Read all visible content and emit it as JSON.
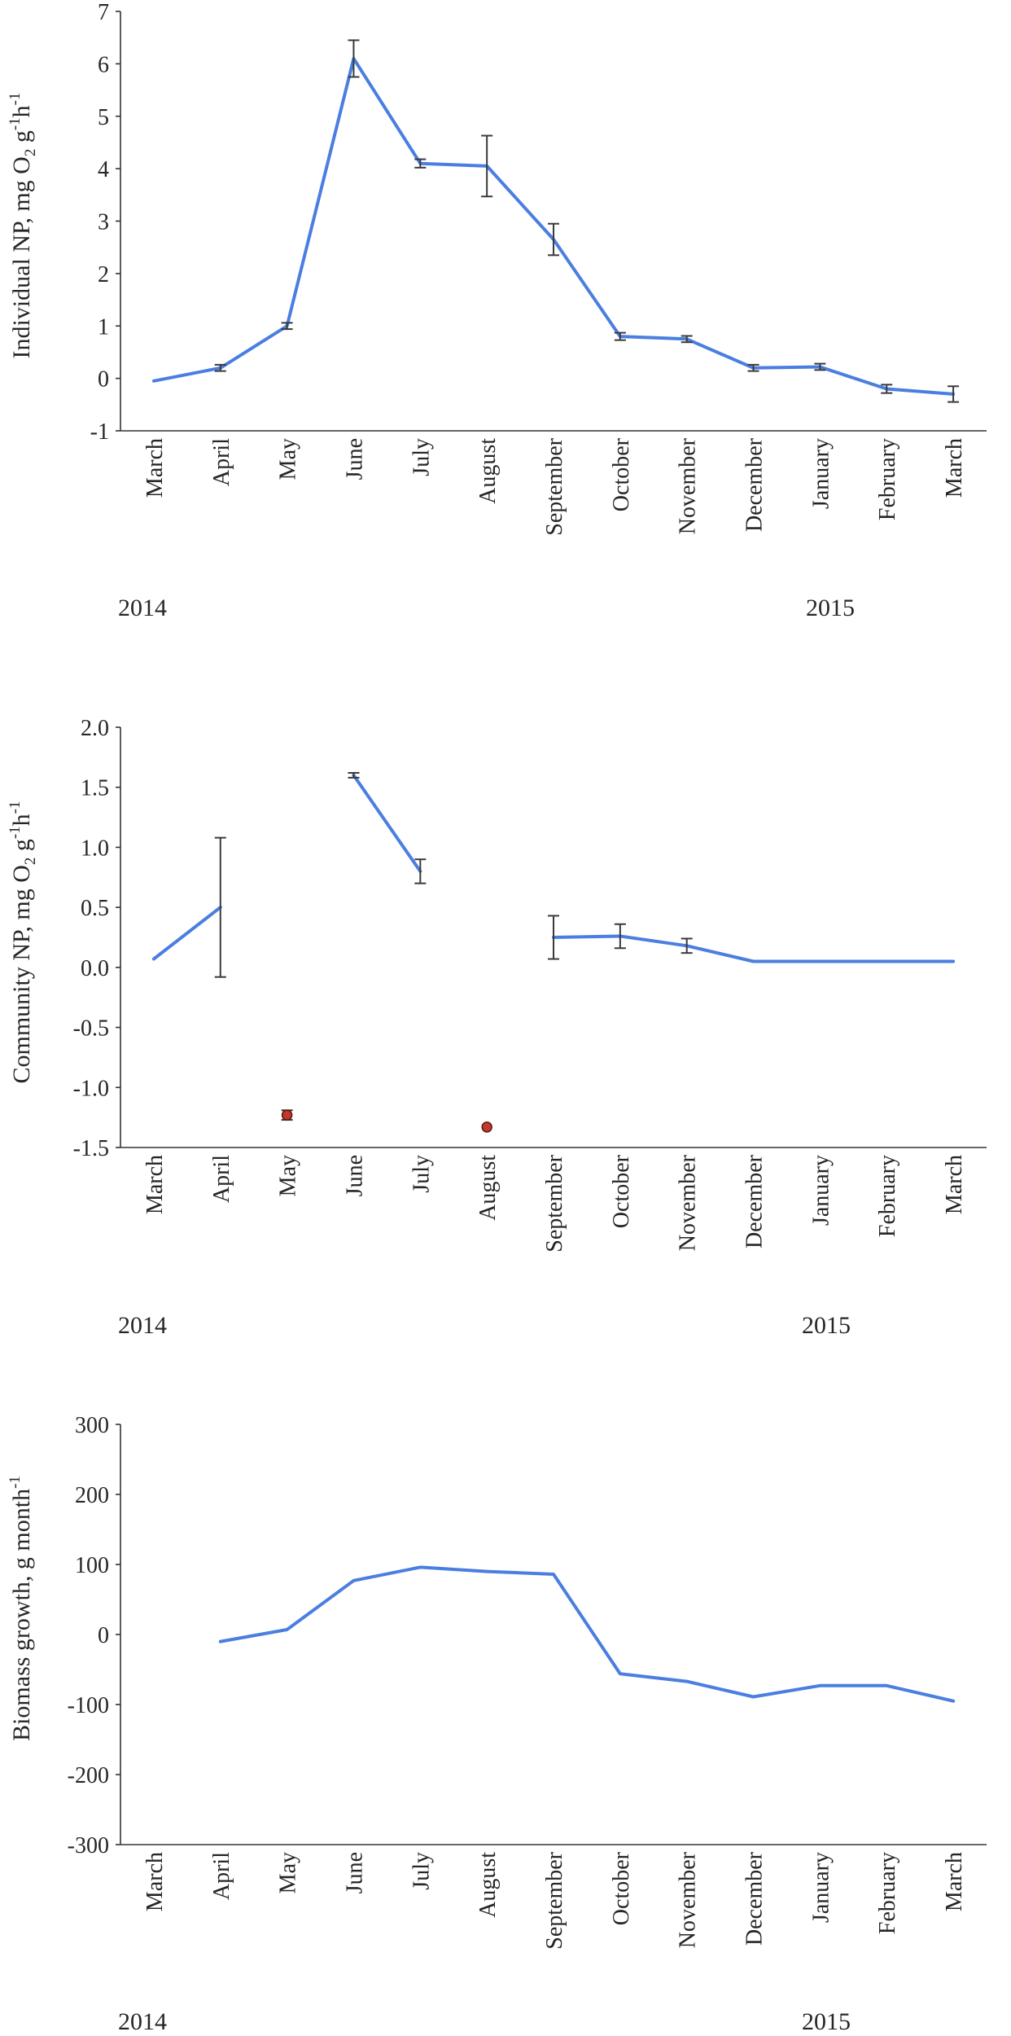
{
  "colors": {
    "line": "#4a7ee0",
    "marker": "#c0392b",
    "axis": "#333333"
  },
  "chart_data": [
    {
      "type": "line",
      "ylabel_main": "Individual NP, mg O",
      "ylabel_sub": "2",
      "ylabel_rest": " g",
      "ylabel_sup1": "-1",
      "ylabel_h": "h",
      "ylabel_sup2": "-1",
      "ylim": [
        -1,
        7
      ],
      "yticks": [
        "-1",
        "0",
        "1",
        "2",
        "3",
        "4",
        "5",
        "6",
        "7"
      ],
      "categories": [
        "March",
        "April",
        "May",
        "June",
        "July",
        "August",
        "September",
        "October",
        "November",
        "December",
        "January",
        "February",
        "March"
      ],
      "years": [
        "2014",
        "2015"
      ],
      "series": [
        {
          "name": "Individual NP",
          "values": [
            -0.05,
            0.2,
            1.0,
            6.1,
            4.1,
            4.05,
            2.65,
            0.8,
            0.75,
            0.2,
            0.22,
            -0.2,
            -0.3
          ],
          "errors": [
            0,
            0.06,
            0.06,
            0.35,
            0.08,
            0.58,
            0.3,
            0.07,
            0.06,
            0.06,
            0.06,
            0.08,
            0.15
          ]
        }
      ],
      "markers": []
    },
    {
      "type": "line",
      "ylabel_main": "Community NP, mg O",
      "ylabel_sub": "2",
      "ylabel_rest": " g",
      "ylabel_sup1": "-1",
      "ylabel_h": "h",
      "ylabel_sup2": "-1",
      "ylim": [
        -1.5,
        2.0
      ],
      "yticks": [
        "-1.5",
        "-1.0",
        "-0.5",
        "0.0",
        "0.5",
        "1.0",
        "1.5",
        "2.0"
      ],
      "categories": [
        "March",
        "April",
        "May",
        "June",
        "July",
        "August",
        "September",
        "October",
        "November",
        "December",
        "January",
        "February",
        "March"
      ],
      "years": [
        "2014",
        "2015"
      ],
      "series": [
        {
          "name": "Community NP",
          "values": [
            0.07,
            0.5,
            null,
            1.6,
            0.8,
            null,
            0.25,
            0.26,
            0.18,
            0.05,
            0.05,
            0.05,
            0.05
          ],
          "errors": [
            0,
            0.58,
            0,
            0.02,
            0.1,
            0,
            0.18,
            0.1,
            0.06,
            0,
            0,
            0,
            0
          ]
        }
      ],
      "markers": [
        {
          "category": "May",
          "value": -1.23,
          "error": 0.04
        },
        {
          "category": "August",
          "value": -1.33,
          "error": 0
        }
      ]
    },
    {
      "type": "line",
      "ylabel_main": "Biomass growth, g month",
      "ylabel_sub": "",
      "ylabel_rest": "",
      "ylabel_sup1": "-1",
      "ylabel_h": "",
      "ylabel_sup2": "",
      "ylim": [
        -300,
        300
      ],
      "yticks": [
        "-300",
        "-200",
        "-100",
        "0",
        "100",
        "200",
        "300"
      ],
      "categories": [
        "March",
        "April",
        "May",
        "June",
        "July",
        "August",
        "September",
        "October",
        "November",
        "December",
        "January",
        "February",
        "March"
      ],
      "years": [
        "2014",
        "2015"
      ],
      "series": [
        {
          "name": "Biomass growth",
          "values": [
            null,
            -10,
            7,
            77,
            96,
            90,
            86,
            -56,
            -67,
            -89,
            -73,
            -73,
            -95
          ],
          "errors": [
            0,
            0,
            0,
            0,
            0,
            0,
            0,
            0,
            0,
            0,
            0,
            0,
            0
          ]
        }
      ],
      "markers": []
    }
  ]
}
